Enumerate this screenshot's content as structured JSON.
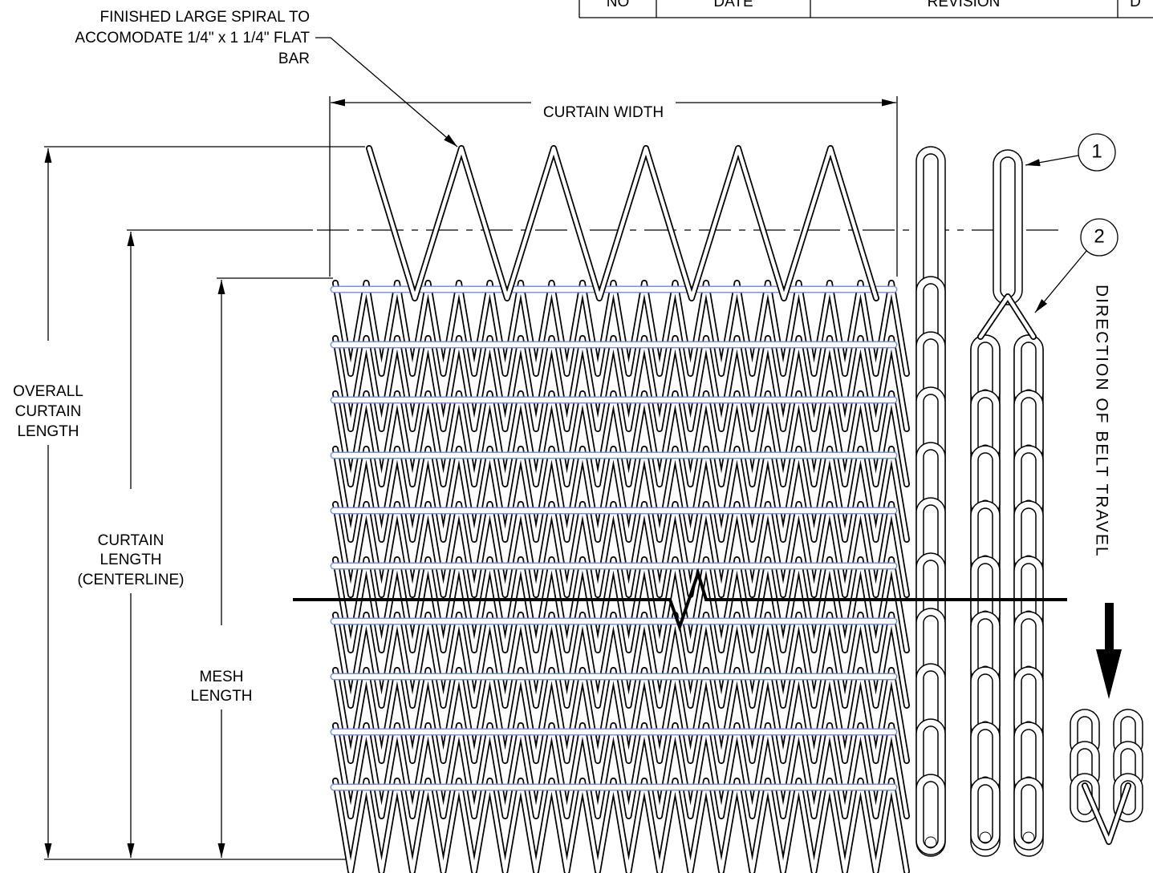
{
  "revision_table": {
    "headers": [
      "NO",
      "DATE",
      "REVISION",
      "D"
    ]
  },
  "callout": {
    "lines": [
      "FINISHED LARGE SPIRAL TO",
      "ACCOMODATE 1/4\" x 1 1/4\" FLAT",
      "BAR"
    ]
  },
  "dimensions": {
    "curtain_width": "CURTAIN WIDTH",
    "overall_curtain_length": [
      "OVERALL",
      "CURTAIN",
      "LENGTH"
    ],
    "curtain_length_centerline": [
      "CURTAIN",
      "LENGTH",
      "(CENTERLINE)"
    ],
    "mesh_length": [
      "MESH",
      "LENGTH"
    ]
  },
  "balloons": [
    "1",
    "2"
  ],
  "direction_label": "DIRECTION OF BELT TRAVEL"
}
